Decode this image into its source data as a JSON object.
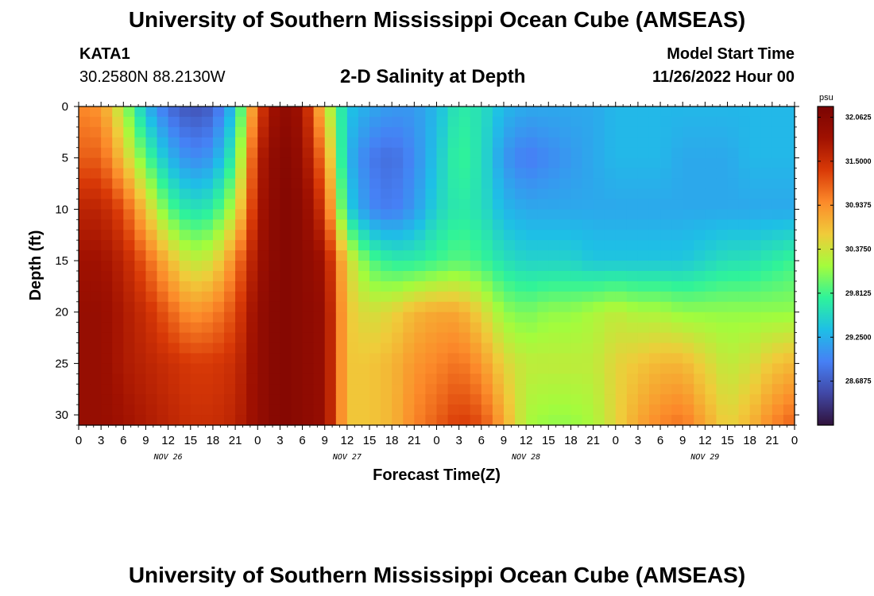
{
  "header": {
    "title": "University of Southern Mississippi Ocean Cube (AMSEAS)",
    "station": "KATA1",
    "coords": "30.2580N  88.2130W",
    "subtitle": "2-D Salinity at Depth",
    "model_start_label": "Model Start Time",
    "model_start_value": "11/26/2022 Hour 00"
  },
  "footer": {
    "title": "University of Southern Mississippi Ocean Cube (AMSEAS)"
  },
  "colorbar": {
    "unit": "psu",
    "ticks": [
      32.0625,
      31.5,
      30.9375,
      30.375,
      29.8125,
      29.25,
      28.6875
    ],
    "tick_labels": [
      "32.0625",
      "31.5000",
      "30.9375",
      "30.3750",
      "29.8125",
      "29.2500",
      "28.6875"
    ],
    "vmin": 28.125,
    "vmax": 32.2,
    "colors": [
      "#30123b",
      "#4148a6",
      "#4680f5",
      "#1ebfe6",
      "#2ff39a",
      "#a4fc3c",
      "#f0cb3a",
      "#fc8a2a",
      "#d93a07",
      "#a01101",
      "#7a0403"
    ]
  },
  "chart_data": {
    "type": "heatmap",
    "title": "2-D Salinity at Depth",
    "xlabel": "Forecast Time(Z)",
    "ylabel": "Depth (ft)",
    "xlim": [
      0,
      96
    ],
    "ylim": [
      31,
      0
    ],
    "x_ticks": [
      0,
      3,
      6,
      9,
      12,
      15,
      18,
      21,
      24,
      27,
      30,
      33,
      36,
      39,
      42,
      45,
      48,
      51,
      54,
      57,
      60,
      63,
      66,
      69,
      72,
      75,
      78,
      81,
      84,
      87,
      90,
      93,
      96
    ],
    "x_tick_labels": [
      "0",
      "3",
      "6",
      "9",
      "12",
      "15",
      "18",
      "21",
      "0",
      "3",
      "6",
      "9",
      "12",
      "15",
      "18",
      "21",
      "0",
      "3",
      "6",
      "9",
      "12",
      "15",
      "18",
      "21",
      "0",
      "3",
      "6",
      "9",
      "12",
      "15",
      "18",
      "21",
      "0"
    ],
    "day_labels": [
      {
        "x": 12,
        "label": "NOV 26"
      },
      {
        "x": 36,
        "label": "NOV 27"
      },
      {
        "x": 60,
        "label": "NOV 28"
      },
      {
        "x": 84,
        "label": "NOV 29"
      }
    ],
    "y_ticks": [
      0,
      5,
      10,
      15,
      20,
      25,
      30
    ],
    "y_tick_labels": [
      "0",
      "5",
      "10",
      "15",
      "20",
      "25",
      "30"
    ],
    "units": "psu",
    "cell_hours": 1.5,
    "cell_depth_ft": 1,
    "time_hours": [
      0,
      3,
      6,
      9,
      12,
      15,
      18,
      21,
      24,
      27,
      30,
      33,
      36,
      39,
      42,
      45,
      48,
      51,
      54,
      57,
      60,
      63,
      66,
      69,
      72,
      75,
      78,
      81,
      84,
      87,
      90,
      93,
      96
    ],
    "depths_ft": [
      0,
      5,
      10,
      15,
      20,
      25,
      31
    ],
    "salinity_psu": [
      [
        31.0,
        30.9,
        30.2,
        29.3,
        28.8,
        28.6,
        28.7,
        29.4,
        31.3,
        32.0,
        31.8,
        30.5,
        29.4,
        29.2,
        29.1,
        29.1,
        29.3,
        29.7,
        29.6,
        29.3,
        29.2,
        29.2,
        29.2,
        29.2,
        29.3,
        29.3,
        29.3,
        29.3,
        29.3,
        29.3,
        29.3,
        29.3,
        29.3
      ],
      [
        31.2,
        31.2,
        30.6,
        29.9,
        29.3,
        29.0,
        29.1,
        29.8,
        31.6,
        32.1,
        31.9,
        31.0,
        29.3,
        28.9,
        28.8,
        29.0,
        29.4,
        29.8,
        29.6,
        29.1,
        28.9,
        29.0,
        29.1,
        29.2,
        29.3,
        29.3,
        29.3,
        29.2,
        29.2,
        29.2,
        29.3,
        29.3,
        29.3
      ],
      [
        31.6,
        31.6,
        31.3,
        30.6,
        29.9,
        29.6,
        29.7,
        30.3,
        31.7,
        32.1,
        32.0,
        31.4,
        29.5,
        29.0,
        28.9,
        29.1,
        29.5,
        29.7,
        29.6,
        29.3,
        29.2,
        29.2,
        29.2,
        29.2,
        29.2,
        29.2,
        29.2,
        29.2,
        29.2,
        29.2,
        29.2,
        29.2,
        29.2
      ],
      [
        31.8,
        31.8,
        31.6,
        31.2,
        30.7,
        30.3,
        30.4,
        31.0,
        31.8,
        32.1,
        32.0,
        31.8,
        30.5,
        29.9,
        29.7,
        29.7,
        29.8,
        29.9,
        29.8,
        29.6,
        29.5,
        29.5,
        29.5,
        29.4,
        29.4,
        29.4,
        29.4,
        29.4,
        29.5,
        29.6,
        29.6,
        29.7,
        29.8
      ],
      [
        31.9,
        31.9,
        31.7,
        31.5,
        31.2,
        30.9,
        31.0,
        31.3,
        31.9,
        32.1,
        32.0,
        31.9,
        30.6,
        30.4,
        30.5,
        30.7,
        30.8,
        30.8,
        30.5,
        30.1,
        30.0,
        30.1,
        30.1,
        30.2,
        30.3,
        30.2,
        30.2,
        30.1,
        30.1,
        30.1,
        30.1,
        30.1,
        30.1
      ],
      [
        31.9,
        31.9,
        31.7,
        31.6,
        31.5,
        31.4,
        31.4,
        31.5,
        31.9,
        32.1,
        32.0,
        31.9,
        30.6,
        30.6,
        30.7,
        30.9,
        31.0,
        31.1,
        30.9,
        30.5,
        30.3,
        30.3,
        30.3,
        30.3,
        30.5,
        30.6,
        30.7,
        30.7,
        30.5,
        30.3,
        30.4,
        30.6,
        30.7
      ],
      [
        31.9,
        31.9,
        31.8,
        31.7,
        31.6,
        31.5,
        31.5,
        31.6,
        31.9,
        32.1,
        32.0,
        31.9,
        30.6,
        30.6,
        30.7,
        31.0,
        31.2,
        31.4,
        31.3,
        30.8,
        30.2,
        30.1,
        30.1,
        30.2,
        30.5,
        30.8,
        31.0,
        31.1,
        30.8,
        30.5,
        30.7,
        31.0,
        31.2
      ]
    ]
  }
}
